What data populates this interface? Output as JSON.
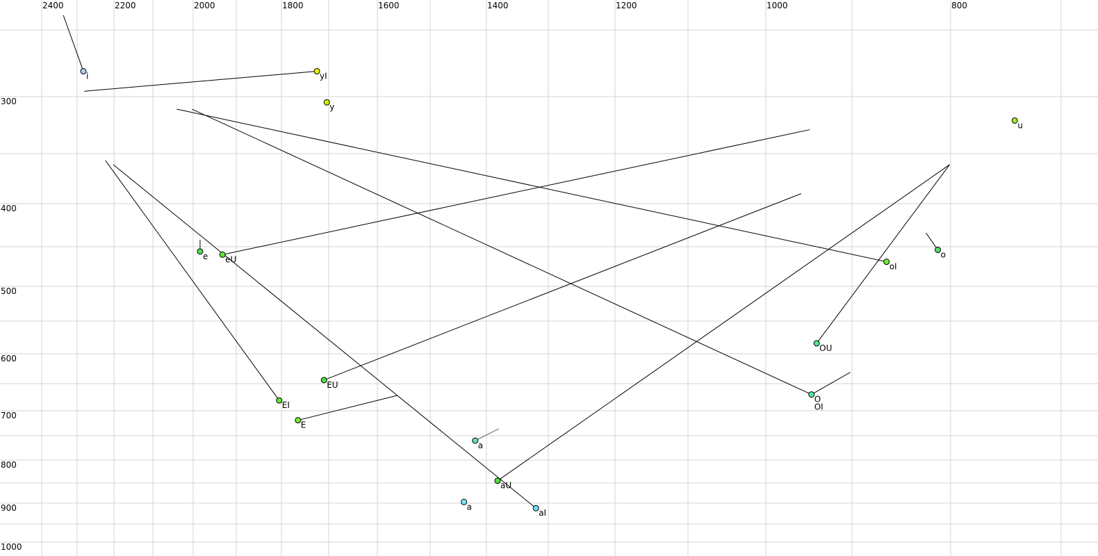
{
  "chart_data": {
    "type": "scatter",
    "title": "",
    "xlabel": "",
    "ylabel": "",
    "x_reversed": true,
    "y_reversed": true,
    "x_scale": "nonlinear (perceptual)",
    "y_scale": "nonlinear (perceptual)",
    "grid": true,
    "xlim": [
      2400,
      700
    ],
    "ylim": [
      250,
      1000
    ],
    "x_ticks_labeled": [
      2400,
      2200,
      2000,
      1800,
      1600,
      1400,
      1200,
      1000,
      800
    ],
    "x_grid": [
      2400,
      2300,
      2200,
      2100,
      2000,
      1900,
      1800,
      1700,
      1600,
      1500,
      1400,
      1300,
      1200,
      1100,
      1000,
      900,
      800,
      700
    ],
    "y_ticks_labeled": [
      300,
      400,
      500,
      600,
      700,
      800,
      900,
      1000
    ],
    "y_grid": [
      250,
      300,
      350,
      400,
      450,
      500,
      550,
      600,
      650,
      700,
      750,
      800,
      850,
      900,
      950,
      1000
    ],
    "colors": {
      "grid": "#d3d3d3",
      "line": "#000000",
      "faded_line": "#666666",
      "faded_label": "#6a6a80"
    },
    "points": [
      {
        "label": "i",
        "x": 2283,
        "y": 281,
        "color": "#a8ccf4"
      },
      {
        "label": "yI",
        "x": 1725,
        "y": 281,
        "color": "#e8f000"
      },
      {
        "label": "y",
        "x": 1704,
        "y": 305,
        "color": "#d8f000"
      },
      {
        "label": "u",
        "x": 742,
        "y": 321,
        "color": "#a8e830"
      },
      {
        "label": "e",
        "x": 1984,
        "y": 456,
        "color": "#50e050"
      },
      {
        "label": "eU",
        "x": 1932,
        "y": 460,
        "color": "#60e830"
      },
      {
        "label": "oI",
        "x": 865,
        "y": 469,
        "color": "#70ec30"
      },
      {
        "label": "o",
        "x": 813,
        "y": 454,
        "color": "#50e070"
      },
      {
        "label": "OU",
        "x": 941,
        "y": 584,
        "color": "#50e890"
      },
      {
        "label": "O",
        "x": 947,
        "y": 670,
        "color": "#50e8a0"
      },
      {
        "label": "OI",
        "x": 947,
        "y": 670,
        "color": "#50e8a0"
      },
      {
        "label": "EU",
        "x": 1710,
        "y": 644,
        "color": "#50e040"
      },
      {
        "label": "EI",
        "x": 1805,
        "y": 681,
        "color": "#60e830"
      },
      {
        "label": "E",
        "x": 1765,
        "y": 719,
        "color": "#70ec30"
      },
      {
        "label": "a",
        "x": 1420,
        "y": 760,
        "color": "#60e0a8",
        "faded": true
      },
      {
        "label": "aU",
        "x": 1382,
        "y": 845,
        "color": "#50e040"
      },
      {
        "label": "a",
        "x": 1440,
        "y": 897,
        "color": "#70e8f0"
      },
      {
        "label": "aI",
        "x": 1320,
        "y": 912,
        "color": "#70e0f0"
      }
    ],
    "trajectories": [
      {
        "from": [
          2339,
          239
        ],
        "to": [
          2283,
          281
        ]
      },
      {
        "from": [
          2281,
          296
        ],
        "to": [
          1725,
          281
        ]
      },
      {
        "from": [
          2041,
          311
        ],
        "to": [
          865,
          469
        ]
      },
      {
        "from": [
          2003,
          311
        ],
        "to": [
          947,
          670
        ]
      },
      {
        "from": [
          949,
          329
        ],
        "to": [
          1932,
          460
        ]
      },
      {
        "from": [
          2223,
          357
        ],
        "to": [
          1805,
          681
        ]
      },
      {
        "from": [
          2202,
          361
        ],
        "to": [
          1320,
          912
        ]
      },
      {
        "from": [
          959,
          390
        ],
        "to": [
          1710,
          644
        ]
      },
      {
        "from": [
          801,
          361
        ],
        "to": [
          1382,
          845
        ]
      },
      {
        "from": [
          801,
          361
        ],
        "to": [
          941,
          584
        ]
      },
      {
        "from": [
          825,
          434
        ],
        "to": [
          813,
          454
        ]
      },
      {
        "from": [
          1984,
          442
        ],
        "to": [
          1984,
          456
        ]
      },
      {
        "from": [
          902,
          631
        ],
        "to": [
          947,
          670
        ]
      },
      {
        "from": [
          1563,
          672
        ],
        "to": [
          1765,
          719
        ]
      },
      {
        "from": [
          1380,
          736
        ],
        "to": [
          1420,
          760
        ],
        "faded": true
      }
    ]
  }
}
